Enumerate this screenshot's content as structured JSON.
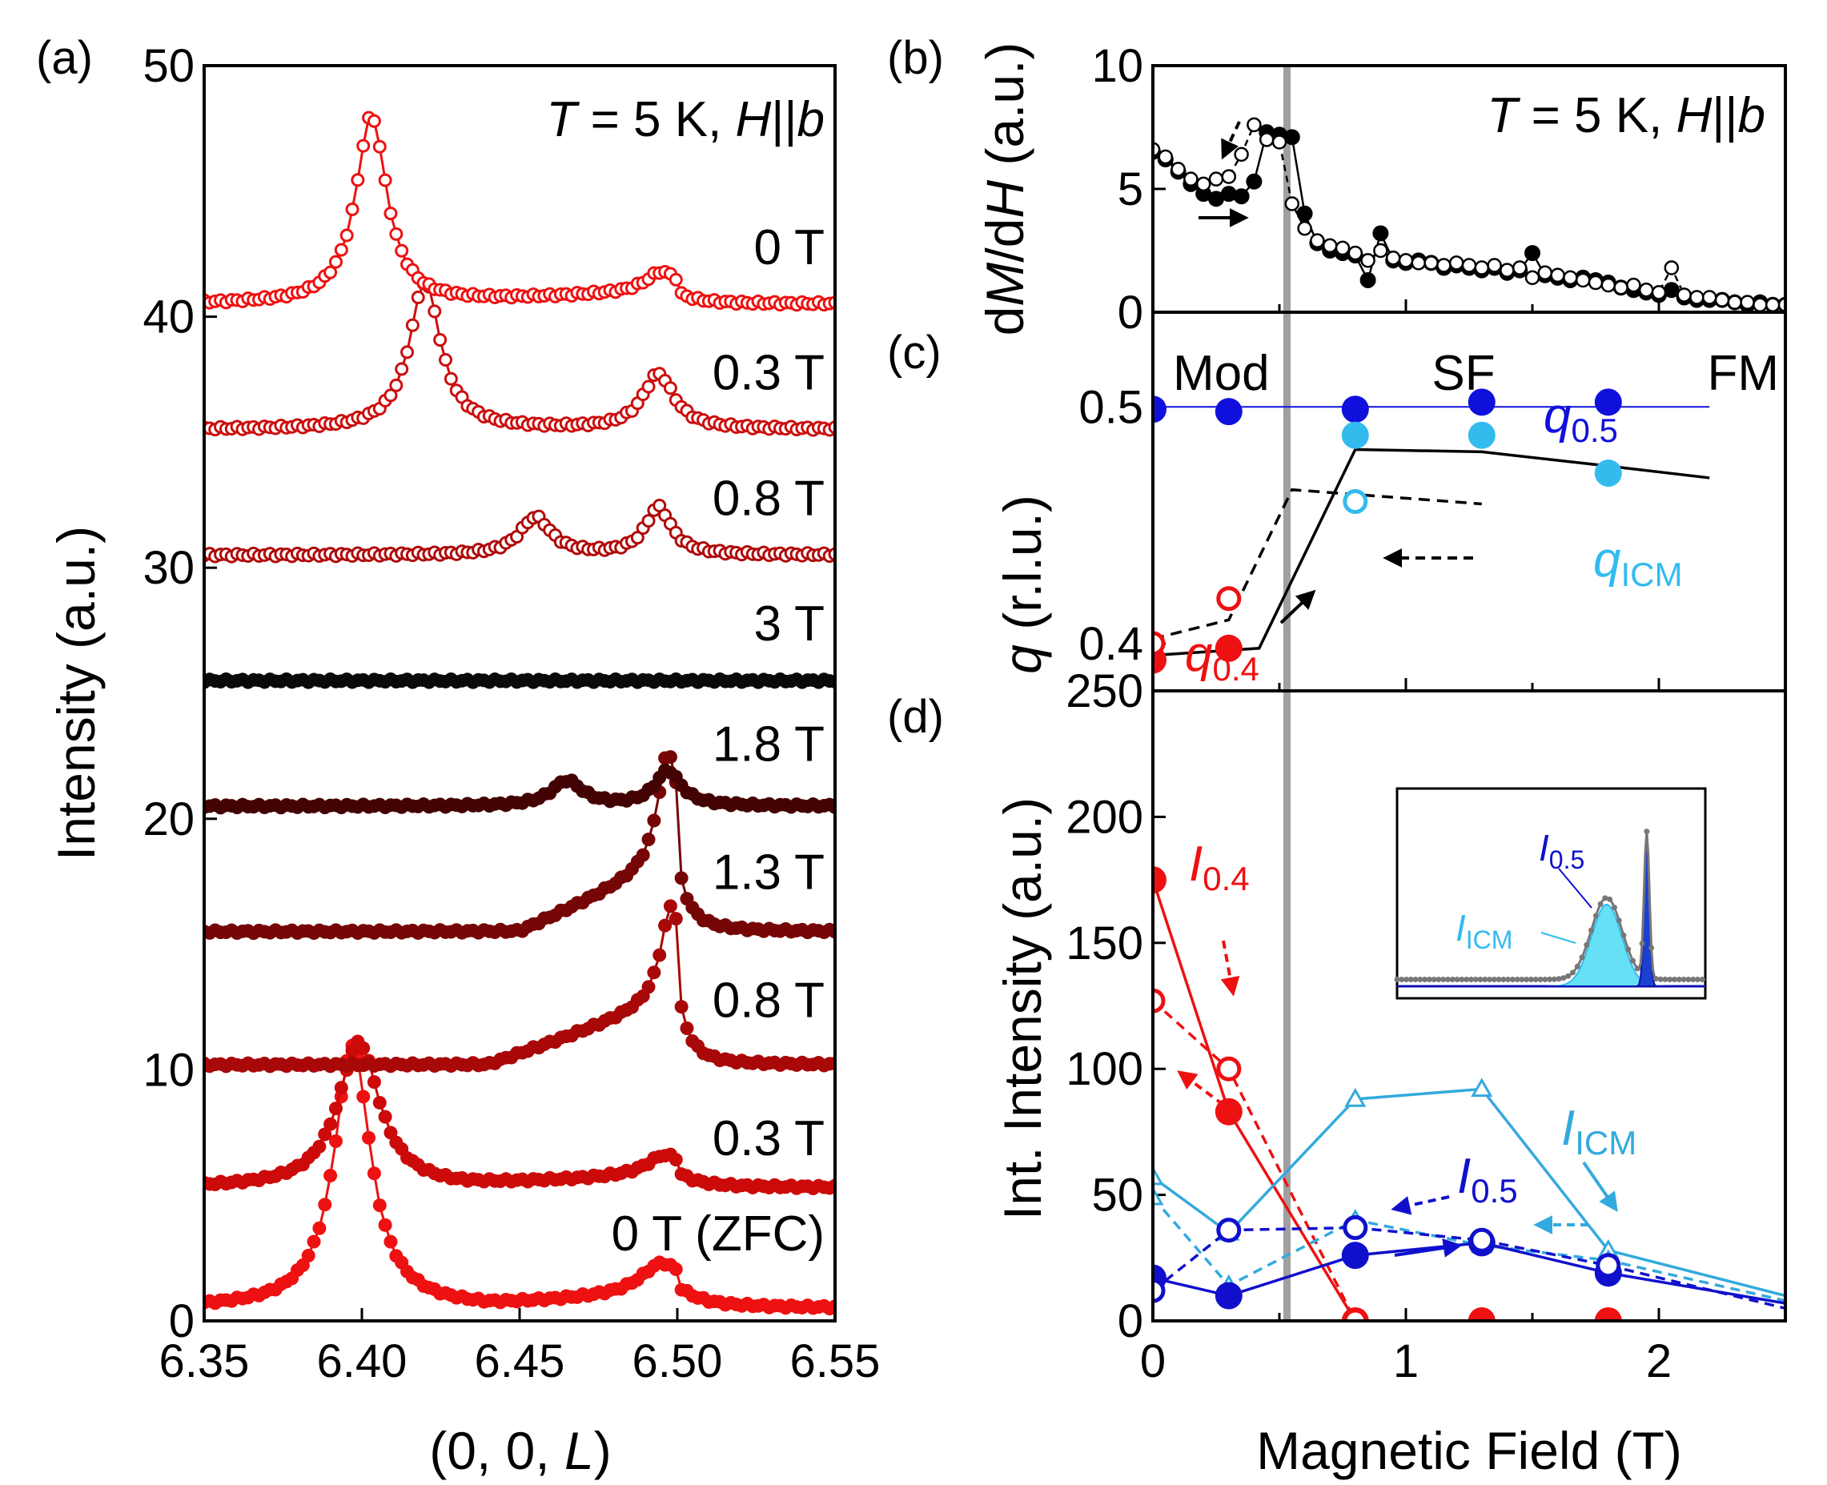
{
  "chart_data": [
    {
      "panel": "(a)",
      "type": "line",
      "xlabel": "(0, 0, L)",
      "ylabel": "Intensity (a.u.)",
      "xlim": [
        6.35,
        6.55
      ],
      "ylim": [
        0,
        50
      ],
      "xticks": [
        "6.35",
        "6.40",
        "6.45",
        "6.50",
        "6.55"
      ],
      "yticks": [
        "0",
        "10",
        "20",
        "30",
        "40",
        "50"
      ],
      "condition": "T = 5 K, H||b",
      "series": [
        {
          "name": "0 T (ZFC)",
          "label": "0 T (ZFC)",
          "offset": 0.5,
          "color": "#ee1111",
          "marker": "filled",
          "peaks": [
            [
              6.397,
              10.5,
              0.007
            ],
            [
              6.495,
              1.2,
              0.008
            ]
          ],
          "shoulder": [
            6.44,
            6.5,
            0.6
          ],
          "labelY": 3.5
        },
        {
          "name": "0.3 T up",
          "label": "0.3 T",
          "offset": 5.3,
          "color": "#cc0a0a",
          "marker": "filled",
          "peaks": [
            [
              6.399,
              5.8,
              0.008
            ],
            [
              6.496,
              0.8,
              0.007
            ]
          ],
          "shoulder": [
            6.43,
            6.5,
            0.5
          ],
          "labelY": 7.3
        },
        {
          "name": "0.8 T up",
          "label": "0.8 T",
          "offset": 10.2,
          "color": "#a80808",
          "marker": "filled",
          "peaks": [
            [
              6.498,
              3.8,
              0.004
            ]
          ],
          "shoulder": [
            6.44,
            6.5,
            2.6
          ],
          "labelY": 12.8
        },
        {
          "name": "1.3 T up",
          "label": "1.3 T",
          "offset": 15.5,
          "color": "#760606",
          "marker": "filled",
          "peaks": [
            [
              6.497,
              4.5,
              0.004
            ]
          ],
          "shoulder": [
            6.45,
            6.5,
            2.8
          ],
          "labelY": 17.9
        },
        {
          "name": "1.8 T up",
          "label": "1.8 T",
          "offset": 20.5,
          "color": "#440303",
          "marker": "filled",
          "peaks": [
            [
              6.465,
              1.0,
              0.006
            ],
            [
              6.497,
              1.4,
              0.005
            ]
          ],
          "shoulder": [
            6.45,
            6.5,
            0.0
          ],
          "labelY": 23.0
        },
        {
          "name": "3 T",
          "label": "3 T",
          "offset": 25.5,
          "color": "#0a0a0a",
          "marker": "filled",
          "peaks": [],
          "shoulder": [
            6.45,
            6.5,
            0.0
          ],
          "labelY": 27.8
        },
        {
          "name": "0.8 T down",
          "label": "0.8 T",
          "offset": 30.5,
          "color": "#b00a0a",
          "marker": "open",
          "peaks": [
            [
              6.455,
              1.5,
              0.006
            ],
            [
              6.494,
              1.9,
              0.005
            ]
          ],
          "shoulder": [
            6.45,
            6.5,
            0.0
          ],
          "labelY": 32.8
        },
        {
          "name": "0.3 T down",
          "label": "0.3 T",
          "offset": 35.5,
          "color": "#cc0e0e",
          "marker": "open",
          "peaks": [
            [
              6.42,
              5.9,
              0.006
            ],
            [
              6.494,
              2.2,
              0.006
            ]
          ],
          "shoulder": [
            6.45,
            6.5,
            0.0
          ],
          "labelY": 37.8
        },
        {
          "name": "0 T down",
          "label": "0 T",
          "offset": 40.5,
          "color": "#ee1111",
          "marker": "open",
          "peaks": [
            [
              6.403,
              7.5,
              0.006
            ],
            [
              6.495,
              0.8,
              0.006
            ]
          ],
          "shoulder": [
            6.42,
            6.5,
            0.5
          ],
          "labelY": 42.8
        }
      ]
    },
    {
      "panel": "(b)",
      "type": "line",
      "xlabel": "Magnetic Field (T)",
      "ylabel": "dM/dH (a.u.)",
      "xlim": [
        0,
        2.5
      ],
      "ylim": [
        0,
        10
      ],
      "yticks": [
        "0",
        "5",
        "10"
      ],
      "condition": "T = 5 K, H||b",
      "series": [
        {
          "name": "field up",
          "marker": "filled",
          "color": "#000000",
          "x": [
            0,
            0.05,
            0.1,
            0.15,
            0.2,
            0.25,
            0.3,
            0.35,
            0.4,
            0.45,
            0.5,
            0.55,
            0.6,
            0.65,
            0.7,
            0.75,
            0.8,
            0.85,
            0.9,
            0.95,
            1.0,
            1.05,
            1.1,
            1.15,
            1.2,
            1.25,
            1.3,
            1.35,
            1.4,
            1.45,
            1.5,
            1.55,
            1.6,
            1.65,
            1.7,
            1.75,
            1.8,
            1.85,
            1.9,
            1.95,
            2.0,
            2.05,
            2.1,
            2.15,
            2.2,
            2.25,
            2.3,
            2.35,
            2.4,
            2.45,
            2.5
          ],
          "y": [
            6.5,
            6.2,
            5.7,
            5.2,
            4.8,
            4.6,
            4.8,
            4.7,
            5.3,
            7.3,
            7.2,
            7.1,
            4.0,
            2.8,
            2.5,
            2.4,
            2.3,
            1.3,
            3.2,
            2.1,
            2.0,
            2.1,
            2.0,
            1.8,
            1.9,
            1.8,
            1.7,
            1.8,
            1.6,
            1.7,
            2.4,
            1.5,
            1.4,
            1.3,
            1.4,
            1.3,
            1.2,
            1.0,
            0.9,
            0.8,
            0.7,
            0.9,
            0.6,
            0.5,
            0.5,
            0.5,
            0.4,
            0.3,
            0.4,
            0.3,
            0.3
          ]
        },
        {
          "name": "field down",
          "marker": "open",
          "color": "#000000",
          "x": [
            0,
            0.05,
            0.1,
            0.15,
            0.2,
            0.25,
            0.3,
            0.35,
            0.4,
            0.45,
            0.5,
            0.55,
            0.6,
            0.65,
            0.7,
            0.75,
            0.8,
            0.85,
            0.9,
            0.95,
            1.0,
            1.05,
            1.1,
            1.15,
            1.2,
            1.25,
            1.3,
            1.35,
            1.4,
            1.45,
            1.5,
            1.55,
            1.6,
            1.65,
            1.7,
            1.75,
            1.8,
            1.85,
            1.9,
            1.95,
            2.0,
            2.05,
            2.1,
            2.15,
            2.2,
            2.25,
            2.3,
            2.35,
            2.4,
            2.45,
            2.5
          ],
          "y": [
            6.6,
            6.3,
            5.8,
            5.4,
            5.2,
            5.4,
            5.5,
            6.4,
            7.6,
            7.0,
            6.9,
            4.4,
            3.4,
            2.9,
            2.7,
            2.6,
            2.4,
            2.1,
            2.5,
            2.2,
            2.1,
            2.0,
            2.0,
            1.9,
            2.0,
            1.9,
            1.8,
            1.9,
            1.7,
            1.8,
            1.4,
            1.6,
            1.5,
            1.4,
            1.3,
            1.2,
            1.1,
            1.0,
            1.1,
            0.9,
            0.8,
            1.8,
            0.7,
            0.6,
            0.6,
            0.5,
            0.4,
            0.4,
            0.3,
            0.3,
            0.3
          ]
        }
      ]
    },
    {
      "panel": "(c)",
      "type": "scatter",
      "xlabel": "Magnetic Field (T)",
      "ylabel": "q (r.l.u.)",
      "xlim": [
        0,
        2.5
      ],
      "ylim": [
        0.38,
        0.54
      ],
      "yticks": [
        "0.4",
        "0.5"
      ],
      "regions": [
        "Mod",
        "SF",
        "FM"
      ],
      "series": [
        {
          "name": "q0.5 up",
          "label": "q0.5",
          "marker": "filled",
          "color": "#1010dd",
          "x": [
            0,
            0.3,
            0.8,
            1.3,
            1.8
          ],
          "y": [
            0.499,
            0.498,
            0.499,
            0.502,
            0.502
          ]
        },
        {
          "name": "qICM up",
          "label": "qICM",
          "marker": "filled",
          "color": "#33bbee",
          "x": [
            0.8,
            1.3,
            1.8
          ],
          "y": [
            0.488,
            0.488,
            0.472
          ]
        },
        {
          "name": "qICM down",
          "marker": "open",
          "color": "#33bbee",
          "x": [
            0.8
          ],
          "y": [
            0.46
          ]
        },
        {
          "name": "q0.4 up",
          "label": "q0.4",
          "marker": "filled",
          "color": "#ee1111",
          "x": [
            0,
            0.3
          ],
          "y": [
            0.393,
            0.398
          ]
        },
        {
          "name": "q0.4 down",
          "marker": "open",
          "color": "#ee1111",
          "x": [
            0,
            0.3
          ],
          "y": [
            0.4,
            0.419
          ]
        }
      ],
      "guide_lines": [
        {
          "name": "q0.5 guide",
          "color": "#1010dd",
          "dash": false,
          "x": [
            0,
            2.2
          ],
          "y": [
            0.5,
            0.5
          ]
        },
        {
          "name": "up-sweep guide",
          "color": "#000000",
          "dash": false,
          "x": [
            0,
            0.42,
            0.8,
            1.3,
            1.8,
            2.2
          ],
          "y": [
            0.395,
            0.398,
            0.482,
            0.481,
            0.475,
            0.47
          ]
        },
        {
          "name": "down-sweep guide",
          "color": "#000000",
          "dash": true,
          "x": [
            0,
            0.3,
            0.55,
            0.8,
            1.3
          ],
          "y": [
            0.402,
            0.41,
            0.465,
            0.463,
            0.459
          ]
        }
      ]
    },
    {
      "panel": "(d)",
      "type": "line",
      "xlabel": "Magnetic Field (T)",
      "ylabel": "Int. Intensity (a.u.)",
      "xlim": [
        0,
        2.5
      ],
      "ylim": [
        0,
        250
      ],
      "xticks": [
        "0",
        "1",
        "2"
      ],
      "yticks": [
        "0",
        "50",
        "100",
        "150",
        "200",
        "250"
      ],
      "series": [
        {
          "name": "I0.4 up",
          "label": "I0.4",
          "marker": "filled-circle",
          "color": "#ee1111",
          "dash": false,
          "x": [
            0,
            0.3,
            0.8,
            1.3,
            1.8,
            2.5
          ],
          "y": [
            175,
            83,
            0,
            0,
            0,
            0
          ]
        },
        {
          "name": "I0.4 down",
          "marker": "open-circle",
          "color": "#ee1111",
          "dash": true,
          "x": [
            0,
            0.3,
            0.8
          ],
          "y": [
            127,
            100,
            0
          ]
        },
        {
          "name": "ICM up",
          "label": "ICM",
          "marker": "open-triangle",
          "color": "#33aadd",
          "dash": false,
          "x": [
            0,
            0.3,
            0.8,
            1.3,
            1.8,
            2.5
          ],
          "y": [
            57,
            35,
            88,
            92,
            28,
            10
          ]
        },
        {
          "name": "ICM down",
          "marker": "open-triangle",
          "color": "#33aadd",
          "dash": true,
          "x": [
            0,
            0.3,
            0.8,
            1.3,
            1.8,
            2.5
          ],
          "y": [
            49,
            14,
            40,
            30,
            24,
            8
          ]
        },
        {
          "name": "I0.5 up",
          "label": "I0.5",
          "marker": "filled-circle",
          "color": "#1010cc",
          "dash": false,
          "x": [
            0,
            0.3,
            0.8,
            1.3,
            1.8,
            2.5
          ],
          "y": [
            17,
            10,
            26,
            31,
            19,
            7
          ]
        },
        {
          "name": "I0.5 down",
          "marker": "open-circle",
          "color": "#1010cc",
          "dash": true,
          "x": [
            0,
            0.3,
            0.8,
            1.3,
            1.8,
            2.5
          ],
          "y": [
            12,
            36,
            37,
            32,
            22,
            5
          ]
        }
      ],
      "inset": {
        "labels": [
          "I0.5",
          "ICM"
        ],
        "description_type": "line",
        "curve": {
          "baseline": 0.15,
          "icm_center": 0.68,
          "icm_height": 0.45,
          "icm_width": 0.07,
          "sharp_center": 0.81,
          "sharp_height": 0.8,
          "sharp_width": 0.012
        }
      }
    }
  ],
  "shared": {
    "vertical_marker_field": 0.53,
    "vertical_marker_color": "#a0a0a0"
  },
  "text": {
    "panel_a": "(a)",
    "panel_b": "(b)",
    "panel_c": "(c)",
    "panel_d": "(d)",
    "cond_a_T": "T",
    "cond_a_rest": " = 5 K, ",
    "cond_a_H": "H",
    "cond_a_par": "||",
    "cond_a_b": "b",
    "cond_b_T": "T",
    "cond_b_rest": " = 5 K, ",
    "cond_b_H": "H",
    "cond_b_par": "||",
    "cond_b_b": "b",
    "xlabel_a_pre": "(0, 0, ",
    "xlabel_a_L": "L",
    "xlabel_a_post": ")",
    "ylabel_a": "Intensity (a.u.)",
    "ylabel_b_d1": "d",
    "ylabel_b_M": "M",
    "ylabel_b_d2": "/d",
    "ylabel_b_H": "H",
    "ylabel_b_rest": " (a.u.)",
    "ylabel_c_q": "q",
    "ylabel_c_rest": " (r.l.u.)",
    "ylabel_d": "Int. Intensity (a.u.)",
    "xlabel_d": "Magnetic Field (T)",
    "region_mod": "Mod",
    "region_sf": "SF",
    "region_fm": "FM",
    "q05_main": "q",
    "q05_sub": "0.5",
    "qicm_main": "q",
    "qicm_sub": "ICM",
    "q04_main": "q",
    "q04_sub": "0.4",
    "i04_main": "I",
    "i04_sub": "0.4",
    "icm_main": "I",
    "icm_sub": "ICM",
    "i05_main": "I",
    "i05_sub": "0.5",
    "inset_i05_main": "I",
    "inset_i05_sub": "0.5",
    "inset_icm_main": "I",
    "inset_icm_sub": "ICM"
  }
}
